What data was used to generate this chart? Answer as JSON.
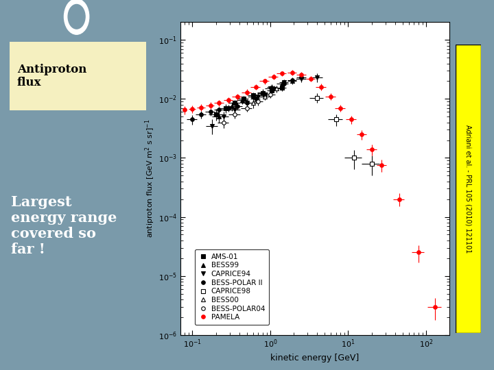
{
  "slide_bg": "#7a9aaa",
  "left_panel_color": "#cc5533",
  "title_box_color": "#f5f0c0",
  "title_text": "Antiproton\nflux",
  "main_text": "Largest\nenergy range\ncovered so\nfar !",
  "citation": "Adriani et al. - PRL 105 (2010) 121101",
  "citation_bg": "#ffff00",
  "plot_bg": "#ffffff",
  "xlabel": "kinetic energy [GeV]",
  "xlim": [
    0.07,
    200
  ],
  "ylim": [
    1e-06,
    0.2
  ],
  "AMS01": {
    "x": [
      0.2,
      0.27,
      0.35,
      0.45,
      0.6,
      0.8,
      1.05,
      1.4
    ],
    "y": [
      0.0055,
      0.007,
      0.0085,
      0.01,
      0.0115,
      0.0125,
      0.014,
      0.0155
    ],
    "xerr": [
      0.04,
      0.05,
      0.06,
      0.07,
      0.09,
      0.12,
      0.15,
      0.2
    ],
    "yerr": [
      0.0012,
      0.0012,
      0.0012,
      0.0013,
      0.0013,
      0.0015,
      0.0015,
      0.0018
    ],
    "color": "black",
    "marker": "s",
    "label": "AMS-01"
  },
  "BESS99": {
    "x": [
      0.22,
      0.32,
      0.44,
      0.6,
      0.8,
      1.05,
      1.4,
      1.9
    ],
    "y": [
      0.005,
      0.0075,
      0.0095,
      0.011,
      0.013,
      0.016,
      0.018,
      0.02
    ],
    "xerr": [
      0.04,
      0.06,
      0.07,
      0.09,
      0.12,
      0.15,
      0.2,
      0.25
    ],
    "yerr": [
      0.001,
      0.0012,
      0.0013,
      0.0014,
      0.0015,
      0.0018,
      0.002,
      0.0025
    ],
    "color": "black",
    "marker": "^",
    "label": "BESS99"
  },
  "CAPRICE94": {
    "x": [
      0.18,
      0.25,
      0.35,
      0.5,
      0.7,
      1.0,
      1.5,
      2.5,
      4.0
    ],
    "y": [
      0.0035,
      0.005,
      0.0065,
      0.0085,
      0.011,
      0.015,
      0.019,
      0.022,
      0.023
    ],
    "xerr": [
      0.03,
      0.04,
      0.06,
      0.08,
      0.1,
      0.15,
      0.2,
      0.4,
      0.7
    ],
    "yerr": [
      0.001,
      0.001,
      0.0012,
      0.0013,
      0.0015,
      0.002,
      0.0025,
      0.003,
      0.004
    ],
    "color": "black",
    "marker": "v",
    "label": "CAPRICE94"
  },
  "BESSPOLAR2": {
    "x": [
      0.1,
      0.13,
      0.17,
      0.22,
      0.29,
      0.38,
      0.5,
      0.65,
      0.85,
      1.1,
      1.5,
      1.9,
      2.5
    ],
    "y": [
      0.0045,
      0.0055,
      0.006,
      0.0065,
      0.007,
      0.0075,
      0.0085,
      0.01,
      0.012,
      0.015,
      0.018,
      0.021,
      0.023
    ],
    "xerr": [
      0.015,
      0.02,
      0.025,
      0.03,
      0.04,
      0.06,
      0.07,
      0.09,
      0.12,
      0.15,
      0.2,
      0.25,
      0.35
    ],
    "yerr": [
      0.0008,
      0.0008,
      0.0008,
      0.0009,
      0.0009,
      0.001,
      0.0011,
      0.0012,
      0.0014,
      0.0016,
      0.002,
      0.0023,
      0.0028
    ],
    "color": "black",
    "marker": "o",
    "label": "BESS-POLAR II"
  },
  "CAPRICE98": {
    "x": [
      4.0,
      7.0,
      12.0,
      20.0
    ],
    "y": [
      0.0105,
      0.0045,
      0.001,
      0.0008
    ],
    "xerr": [
      0.8,
      1.5,
      3.0,
      5.0
    ],
    "yerr": [
      0.002,
      0.001,
      0.00035,
      0.0003
    ],
    "color": "black",
    "marker": "s",
    "mfc": "white",
    "label": "CAPRICE98"
  },
  "BESS00": {
    "x": [
      0.6,
      0.85,
      1.2
    ],
    "y": [
      0.0085,
      0.011,
      0.015
    ],
    "xerr": [
      0.1,
      0.13,
      0.2
    ],
    "yerr": [
      0.0015,
      0.0015,
      0.002
    ],
    "color": "black",
    "marker": "^",
    "mfc": "white",
    "label": "BESS00"
  },
  "BESSPOLAR04": {
    "x": [
      0.25,
      0.35,
      0.5,
      0.7,
      1.0
    ],
    "y": [
      0.004,
      0.0055,
      0.007,
      0.009,
      0.012
    ],
    "xerr": [
      0.04,
      0.06,
      0.08,
      0.1,
      0.15
    ],
    "yerr": [
      0.0008,
      0.0009,
      0.001,
      0.0012,
      0.0015
    ],
    "color": "black",
    "marker": "o",
    "mfc": "white",
    "label": "BESS-POLAR04"
  },
  "PAMELA": {
    "x": [
      0.08,
      0.1,
      0.13,
      0.17,
      0.22,
      0.29,
      0.38,
      0.5,
      0.65,
      0.85,
      1.1,
      1.4,
      1.9,
      2.5,
      3.3,
      4.5,
      6.0,
      8.0,
      11.0,
      15.0,
      20.0,
      27.0,
      45.0,
      80.0,
      130.0
    ],
    "y": [
      0.0065,
      0.0068,
      0.0072,
      0.0078,
      0.0085,
      0.0095,
      0.011,
      0.013,
      0.016,
      0.02,
      0.024,
      0.027,
      0.028,
      0.026,
      0.022,
      0.016,
      0.011,
      0.007,
      0.0045,
      0.0025,
      0.0014,
      0.00075,
      0.0002,
      2.5e-05,
      3e-06
    ],
    "xerr": [
      0.005,
      0.01,
      0.015,
      0.02,
      0.03,
      0.04,
      0.06,
      0.07,
      0.09,
      0.12,
      0.15,
      0.2,
      0.25,
      0.35,
      0.45,
      0.65,
      0.9,
      1.2,
      1.6,
      2.2,
      3.0,
      4.0,
      7.0,
      15.0,
      25.0
    ],
    "yerr": [
      0.001,
      0.001,
      0.001,
      0.001,
      0.001,
      0.0012,
      0.0013,
      0.0015,
      0.0018,
      0.0022,
      0.0025,
      0.0028,
      0.003,
      0.003,
      0.0025,
      0.002,
      0.0015,
      0.001,
      0.0007,
      0.00045,
      0.0003,
      0.00018,
      5e-05,
      8e-06,
      1.2e-06
    ],
    "color": "red",
    "marker": "o",
    "label": "PAMELA"
  }
}
